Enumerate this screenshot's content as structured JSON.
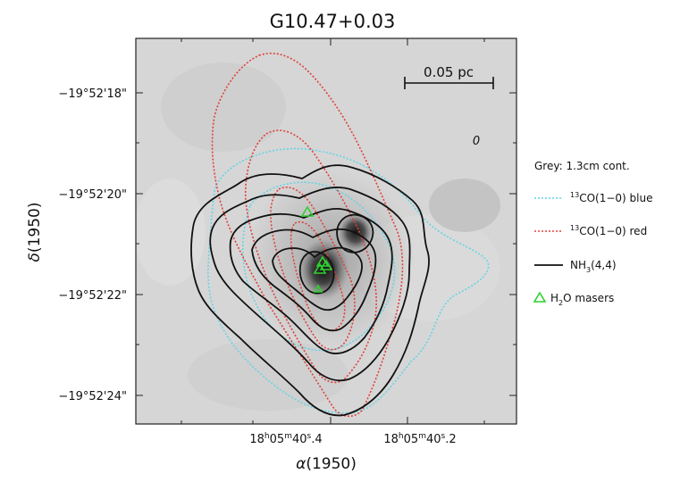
{
  "title": "G10.47+0.03",
  "scalebar_label": "0.05 pc",
  "y_axis": {
    "label_symbol": "δ",
    "label_suffix": "(1950)",
    "ticks": [
      "−19°52'18\"",
      "−19°52'20\"",
      "−19°52'22\"",
      "−19°52'24\""
    ]
  },
  "x_axis": {
    "label_symbol": "α",
    "label_suffix": "(1950)",
    "ticks": [
      {
        "pre": "18",
        "h": "h",
        "mid": "05",
        "m": "m",
        "sec": "40",
        "s": "s",
        "frac": ".4"
      },
      {
        "pre": "18",
        "h": "h",
        "mid": "05",
        "m": "m",
        "sec": "40",
        "s": "s",
        "frac": ".2"
      }
    ]
  },
  "beam_marker": "0",
  "legend": {
    "grey": "Grey: 1.3cm cont.",
    "blue": {
      "sup": "13",
      "text": "CO(1−0) blue",
      "color": "#5fd3e6"
    },
    "red": {
      "sup": "13",
      "text": "CO(1−0) red",
      "color": "#e0403a"
    },
    "black": {
      "pre": "NH",
      "sub": "3",
      "post": "(4,4)",
      "color": "#111111"
    },
    "masers": {
      "pre": "H",
      "sub": "2",
      "post": "O masers",
      "color": "#2fd12f"
    }
  }
}
